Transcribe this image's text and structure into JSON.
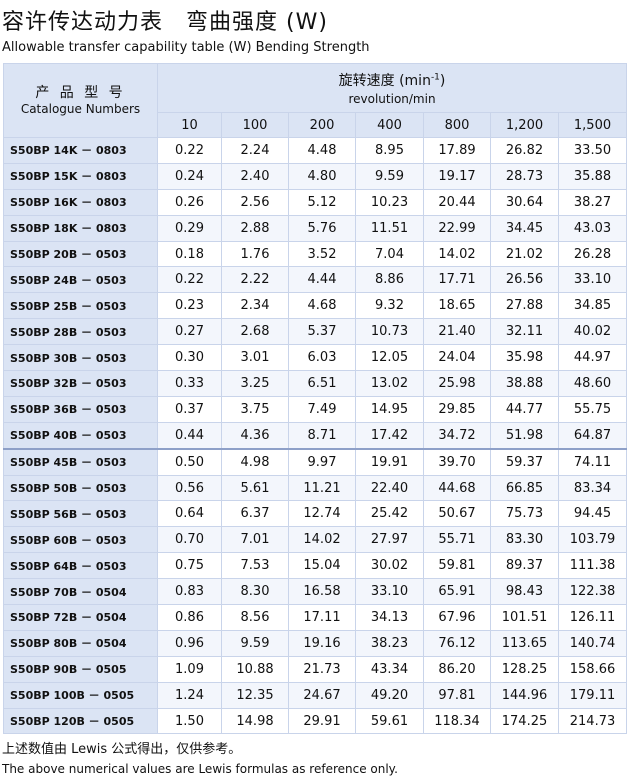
{
  "title": "容许传达动力表　弯曲强度 (W)",
  "subtitle": "Allowable transfer capability table (W) Bending Strength",
  "table": {
    "catalogue_header_cn": "产 品 型 号",
    "catalogue_header_en": "Catalogue Numbers",
    "speed_header_cn": "旋转速度 (min",
    "speed_header_sup": "-1",
    "speed_header_close": ")",
    "speed_header_en": "revolution/min",
    "speeds": [
      "10",
      "100",
      "200",
      "400",
      "800",
      "1,200",
      "1,500"
    ],
    "rows": [
      {
        "cat": "S50BP 14K － 0803",
        "v": [
          "0.22",
          "2.24",
          "4.48",
          "8.95",
          "17.89",
          "26.82",
          "33.50"
        ]
      },
      {
        "cat": "S50BP 15K － 0803",
        "v": [
          "0.24",
          "2.40",
          "4.80",
          "9.59",
          "19.17",
          "28.73",
          "35.88"
        ]
      },
      {
        "cat": "S50BP 16K － 0803",
        "v": [
          "0.26",
          "2.56",
          "5.12",
          "10.23",
          "20.44",
          "30.64",
          "38.27"
        ]
      },
      {
        "cat": "S50BP 18K － 0803",
        "v": [
          "0.29",
          "2.88",
          "5.76",
          "11.51",
          "22.99",
          "34.45",
          "43.03"
        ]
      },
      {
        "cat": "S50BP 20B － 0503",
        "v": [
          "0.18",
          "1.76",
          "3.52",
          "7.04",
          "14.02",
          "21.02",
          "26.28"
        ]
      },
      {
        "cat": "S50BP 24B － 0503",
        "v": [
          "0.22",
          "2.22",
          "4.44",
          "8.86",
          "17.71",
          "26.56",
          "33.10"
        ]
      },
      {
        "cat": "S50BP 25B － 0503",
        "v": [
          "0.23",
          "2.34",
          "4.68",
          "9.32",
          "18.65",
          "27.88",
          "34.85"
        ]
      },
      {
        "cat": "S50BP 28B － 0503",
        "v": [
          "0.27",
          "2.68",
          "5.37",
          "10.73",
          "21.40",
          "32.11",
          "40.02"
        ]
      },
      {
        "cat": "S50BP 30B － 0503",
        "v": [
          "0.30",
          "3.01",
          "6.03",
          "12.05",
          "24.04",
          "35.98",
          "44.97"
        ]
      },
      {
        "cat": "S50BP 32B － 0503",
        "v": [
          "0.33",
          "3.25",
          "6.51",
          "13.02",
          "25.98",
          "38.88",
          "48.60"
        ]
      },
      {
        "cat": "S50BP 36B － 0503",
        "v": [
          "0.37",
          "3.75",
          "7.49",
          "14.95",
          "29.85",
          "44.77",
          "55.75"
        ]
      },
      {
        "cat": "S50BP 40B － 0503",
        "v": [
          "0.44",
          "4.36",
          "8.71",
          "17.42",
          "34.72",
          "51.98",
          "64.87"
        ]
      },
      {
        "cat": "S50BP 45B － 0503",
        "v": [
          "0.50",
          "4.98",
          "9.97",
          "19.91",
          "39.70",
          "59.37",
          "74.11"
        ]
      },
      {
        "cat": "S50BP 50B － 0503",
        "v": [
          "0.56",
          "5.61",
          "11.21",
          "22.40",
          "44.68",
          "66.85",
          "83.34"
        ]
      },
      {
        "cat": "S50BP 56B － 0503",
        "v": [
          "0.64",
          "6.37",
          "12.74",
          "25.42",
          "50.67",
          "75.73",
          "94.45"
        ]
      },
      {
        "cat": "S50BP 60B － 0503",
        "v": [
          "0.70",
          "7.01",
          "14.02",
          "27.97",
          "55.71",
          "83.30",
          "103.79"
        ]
      },
      {
        "cat": "S50BP 64B － 0503",
        "v": [
          "0.75",
          "7.53",
          "15.04",
          "30.02",
          "59.81",
          "89.37",
          "111.38"
        ]
      },
      {
        "cat": "S50BP 70B － 0504",
        "v": [
          "0.83",
          "8.30",
          "16.58",
          "33.10",
          "65.91",
          "98.43",
          "122.38"
        ]
      },
      {
        "cat": "S50BP 72B － 0504",
        "v": [
          "0.86",
          "8.56",
          "17.11",
          "34.13",
          "67.96",
          "101.51",
          "126.11"
        ]
      },
      {
        "cat": "S50BP 80B － 0504",
        "v": [
          "0.96",
          "9.59",
          "19.16",
          "38.23",
          "76.12",
          "113.65",
          "140.74"
        ]
      },
      {
        "cat": "S50BP 90B － 0505",
        "v": [
          "1.09",
          "10.88",
          "21.73",
          "43.34",
          "86.20",
          "128.25",
          "158.66"
        ]
      },
      {
        "cat": "S50BP 100B － 0505",
        "v": [
          "1.24",
          "12.35",
          "24.67",
          "49.20",
          "97.81",
          "144.96",
          "179.11"
        ]
      },
      {
        "cat": "S50BP 120B － 0505",
        "v": [
          "1.50",
          "14.98",
          "29.91",
          "59.61",
          "118.34",
          "174.25",
          "214.73"
        ]
      }
    ]
  },
  "note_cn": "上述数值由 Lewis 公式得出，仅供参考。",
  "note_en": "The above numerical values are Lewis formulas as reference only."
}
